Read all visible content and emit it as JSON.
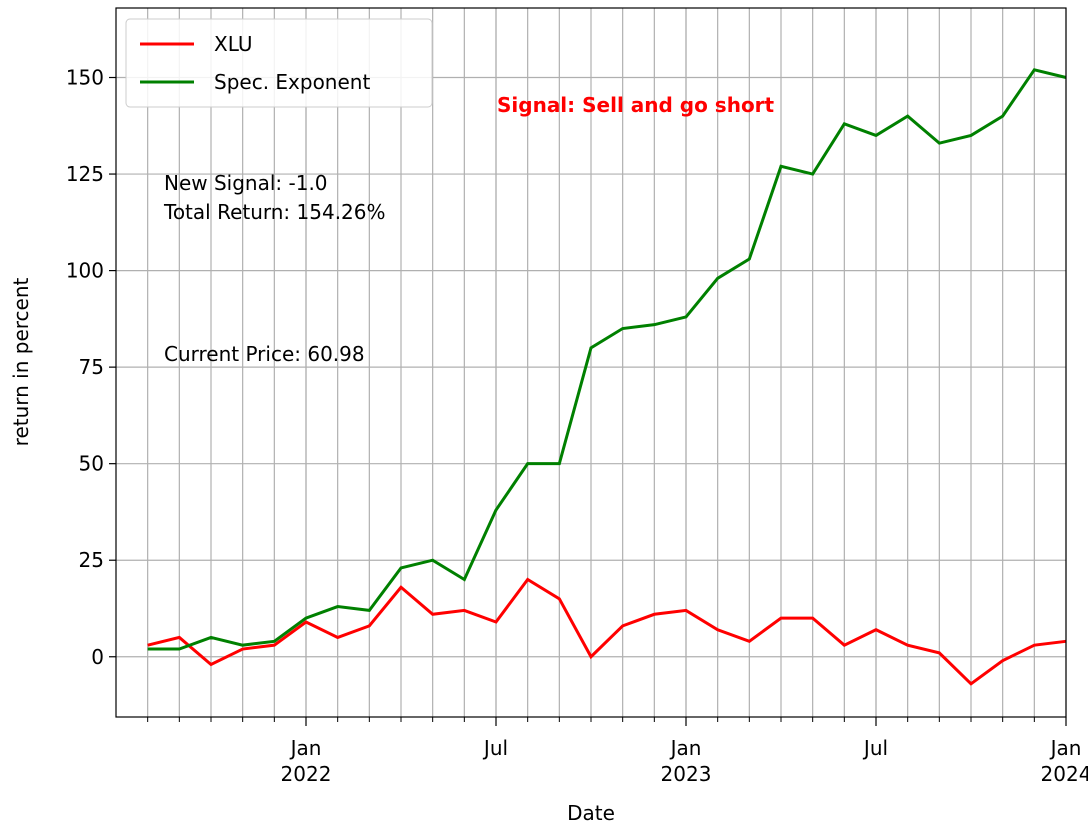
{
  "chart_data": {
    "type": "line",
    "x": [
      "2021-08",
      "2021-09",
      "2021-10",
      "2021-11",
      "2021-12",
      "2022-01",
      "2022-02",
      "2022-03",
      "2022-04",
      "2022-05",
      "2022-06",
      "2022-07",
      "2022-08",
      "2022-09",
      "2022-10",
      "2022-11",
      "2022-12",
      "2023-01",
      "2023-02",
      "2023-03",
      "2023-04",
      "2023-05",
      "2023-06",
      "2023-07",
      "2023-08",
      "2023-09",
      "2023-10",
      "2023-11",
      "2023-12",
      "2024-01"
    ],
    "series": [
      {
        "name": "XLU",
        "color": "#ff0000",
        "values": [
          3,
          5,
          -2,
          2,
          3,
          9,
          5,
          8,
          18,
          11,
          12,
          9,
          20,
          15,
          0,
          8,
          11,
          12,
          7,
          4,
          10,
          10,
          3,
          7,
          3,
          1,
          -7,
          -1,
          3,
          4
        ]
      },
      {
        "name": "Spec. Exponent",
        "color": "#008000",
        "values": [
          2,
          2,
          5,
          3,
          4,
          10,
          13,
          12,
          23,
          25,
          20,
          38,
          50,
          50,
          80,
          85,
          86,
          88,
          98,
          103,
          127,
          125,
          138,
          135,
          140,
          133,
          135,
          140,
          152,
          150
        ]
      }
    ],
    "xlabel": "Date",
    "ylabel": "return in percent",
    "xlim": [
      "2021-07",
      "2024-01"
    ],
    "xticks": [
      {
        "value": "2022-01",
        "label": "Jan\n2022"
      },
      {
        "value": "2022-07",
        "label": "Jul"
      },
      {
        "value": "2023-01",
        "label": "Jan\n2023"
      },
      {
        "value": "2023-07",
        "label": "Jul"
      },
      {
        "value": "2024-01",
        "label": "Jan\n2024"
      }
    ],
    "ylim": [
      -15.6,
      168
    ],
    "yticks": [
      0,
      25,
      50,
      75,
      100,
      125,
      150
    ],
    "grid": true,
    "legend": "upper left",
    "annotations": [
      "Signal: Sell and go short",
      "New Signal: -1.0",
      "Total Return: 154.26%",
      "Current Price: 60.98"
    ]
  }
}
